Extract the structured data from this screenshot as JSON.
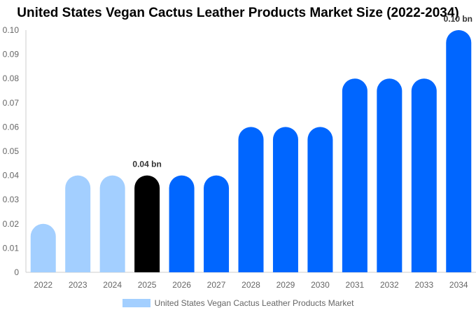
{
  "chart_data": {
    "type": "bar",
    "title": "United States Vegan Cactus Leather Products Market Size (2022-2034)",
    "categories": [
      "2022",
      "2023",
      "2024",
      "2025",
      "2026",
      "2027",
      "2028",
      "2029",
      "2030",
      "2031",
      "2032",
      "2033",
      "2034"
    ],
    "series": [
      {
        "name": "United States Vegan Cactus Leather Products Market",
        "values": [
          0.02,
          0.04,
          0.04,
          0.04,
          0.04,
          0.04,
          0.06,
          0.06,
          0.06,
          0.08,
          0.08,
          0.08,
          0.1
        ]
      }
    ],
    "bar_colors": [
      "#a3cfff",
      "#a3cfff",
      "#a3cfff",
      "#000000",
      "#0066ff",
      "#0066ff",
      "#0066ff",
      "#0066ff",
      "#0066ff",
      "#0066ff",
      "#0066ff",
      "#0066ff",
      "#0066ff"
    ],
    "y_ticks": [
      "0",
      "0.01",
      "0.02",
      "0.03",
      "0.04",
      "0.05",
      "0.06",
      "0.07",
      "0.08",
      "0.09",
      "0.10"
    ],
    "ylim": [
      0,
      0.1
    ],
    "data_labels": [
      {
        "category": "2025",
        "text": "0.04 bn"
      },
      {
        "category": "2034",
        "text": "0.10 bn"
      }
    ],
    "legend_position": "bottom",
    "grid": false
  }
}
